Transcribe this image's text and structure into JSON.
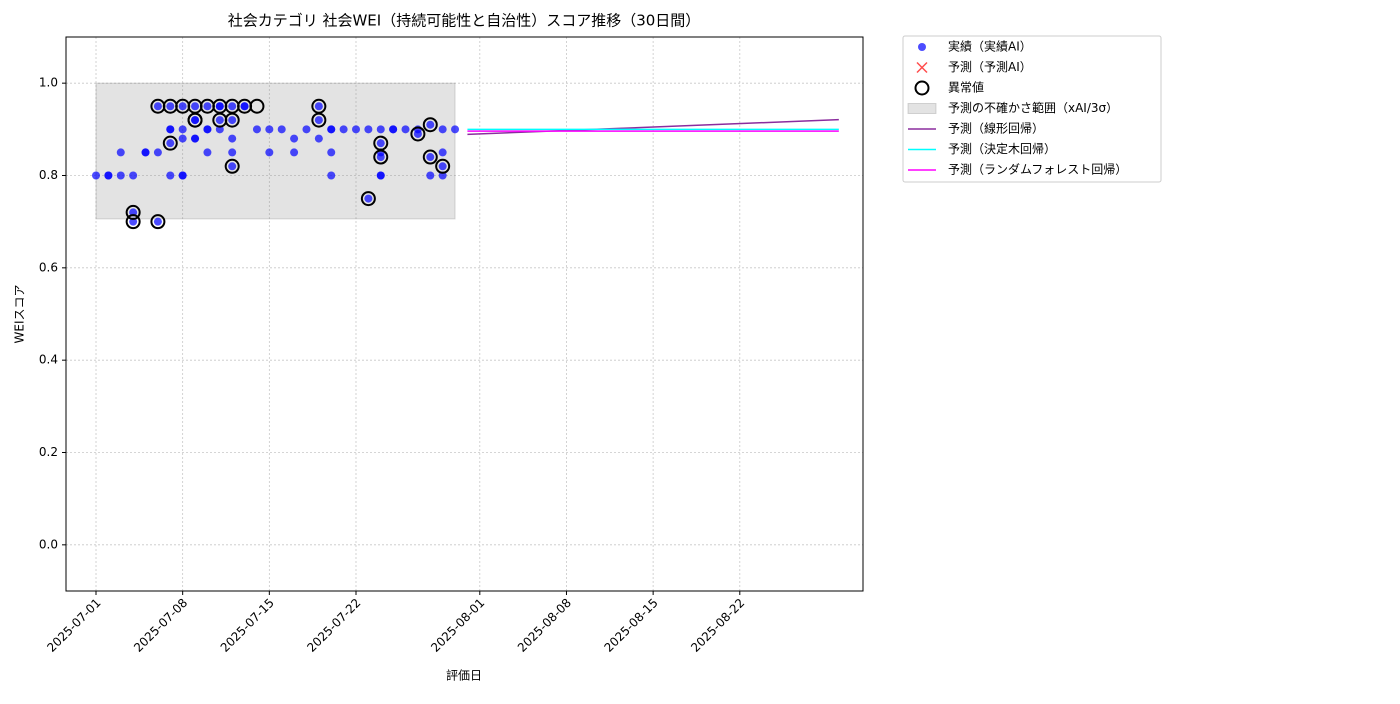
{
  "chart_data": {
    "type": "scatter",
    "title": "社会カテゴリ 社会WEI（持続可能性と自治性）スコア推移（30日間）",
    "x_label": "評価日",
    "y_label": "WEIスコア",
    "xlim": [
      "2025-06-28T13:50:00Z",
      "2025-08-31T22:50:00Z"
    ],
    "xticks": [
      "2025-07-01",
      "2025-07-08",
      "2025-07-15",
      "2025-07-22",
      "2025-08-01",
      "2025-08-08",
      "2025-08-15",
      "2025-08-22"
    ],
    "ylim": [
      -0.1,
      1.1
    ],
    "yticks": [
      {
        "value": 0,
        "label": "0.0"
      },
      {
        "value": 0.2,
        "label": "0.2"
      },
      {
        "value": 0.4,
        "label": "0.4"
      },
      {
        "value": 0.6,
        "label": "0.6"
      },
      {
        "value": 0.8,
        "label": "0.8"
      },
      {
        "value": 1,
        "label": "1.0"
      }
    ],
    "grid": true,
    "legend": "outside upper right",
    "series": [
      {
        "name": "実績（実績AI）",
        "color": "#0000ff",
        "marker": "o",
        "x": [
          "2025-07-01",
          "2025-07-02",
          "2025-07-02",
          "2025-07-03",
          "2025-07-03",
          "2025-07-04",
          "2025-07-04",
          "2025-07-04",
          "2025-07-05",
          "2025-07-05",
          "2025-07-06",
          "2025-07-06",
          "2025-07-06",
          "2025-07-07",
          "2025-07-07",
          "2025-07-07",
          "2025-07-07",
          "2025-07-07",
          "2025-07-08",
          "2025-07-08",
          "2025-07-08",
          "2025-07-08",
          "2025-07-08",
          "2025-07-09",
          "2025-07-09",
          "2025-07-09",
          "2025-07-09",
          "2025-07-09",
          "2025-07-10",
          "2025-07-10",
          "2025-07-10",
          "2025-07-10",
          "2025-07-11",
          "2025-07-11",
          "2025-07-11",
          "2025-07-11",
          "2025-07-12",
          "2025-07-12",
          "2025-07-12",
          "2025-07-12",
          "2025-07-12",
          "2025-07-13",
          "2025-07-13",
          "2025-07-14",
          "2025-07-15",
          "2025-07-15",
          "2025-07-16",
          "2025-07-17",
          "2025-07-17",
          "2025-07-18",
          "2025-07-19",
          "2025-07-19",
          "2025-07-19",
          "2025-07-20",
          "2025-07-20",
          "2025-07-20",
          "2025-07-20",
          "2025-07-21",
          "2025-07-22",
          "2025-07-23",
          "2025-07-23",
          "2025-07-24",
          "2025-07-24",
          "2025-07-24",
          "2025-07-24",
          "2025-07-24",
          "2025-07-24",
          "2025-07-25",
          "2025-07-25",
          "2025-07-26",
          "2025-07-27",
          "2025-07-27",
          "2025-07-28",
          "2025-07-28",
          "2025-07-28",
          "2025-07-29",
          "2025-07-29",
          "2025-07-29",
          "2025-07-29",
          "2025-07-30"
        ],
        "values": [
          0.8,
          0.8,
          0.8,
          0.8,
          0.85,
          0.8,
          0.72,
          0.7,
          0.85,
          0.85,
          0.85,
          0.7,
          0.95,
          0.9,
          0.95,
          0.9,
          0.8,
          0.87,
          0.8,
          0.95,
          0.9,
          0.8,
          0.88,
          0.88,
          0.95,
          0.92,
          0.88,
          0.92,
          0.9,
          0.9,
          0.85,
          0.95,
          0.92,
          0.95,
          0.95,
          0.9,
          0.82,
          0.95,
          0.88,
          0.92,
          0.85,
          0.95,
          0.95,
          0.9,
          0.9,
          0.85,
          0.9,
          0.85,
          0.88,
          0.9,
          0.95,
          0.92,
          0.88,
          0.85,
          0.9,
          0.8,
          0.9,
          0.9,
          0.9,
          0.75,
          0.9,
          0.84,
          0.8,
          0.9,
          0.8,
          0.85,
          0.87,
          0.9,
          0.9,
          0.9,
          0.9,
          0.89,
          0.8,
          0.91,
          0.84,
          0.85,
          0.9,
          0.8,
          0.82,
          0.9
        ]
      },
      {
        "name": "予測（予測AI）",
        "color": "#ff0000",
        "marker": "x",
        "x": [],
        "values": []
      },
      {
        "name": "異常値",
        "color": "#000000",
        "marker": "ring",
        "x": [
          "2025-07-04",
          "2025-07-04",
          "2025-07-06",
          "2025-07-06",
          "2025-07-07",
          "2025-07-07",
          "2025-07-08",
          "2025-07-09",
          "2025-07-09",
          "2025-07-09",
          "2025-07-10",
          "2025-07-11",
          "2025-07-11",
          "2025-07-12",
          "2025-07-12",
          "2025-07-12",
          "2025-07-13",
          "2025-07-14",
          "2025-07-19",
          "2025-07-19",
          "2025-07-23",
          "2025-07-24",
          "2025-07-24",
          "2025-07-27",
          "2025-07-28",
          "2025-07-28",
          "2025-07-29"
        ],
        "values": [
          0.72,
          0.7,
          0.95,
          0.7,
          0.95,
          0.87,
          0.95,
          0.95,
          0.92,
          0.92,
          0.95,
          0.92,
          0.95,
          0.82,
          0.95,
          0.92,
          0.95,
          0.95,
          0.95,
          0.92,
          0.75,
          0.84,
          0.87,
          0.89,
          0.91,
          0.84,
          0.82
        ]
      }
    ],
    "band": {
      "name": "予測の不確かさ範囲（xAI/3σ）",
      "color": "#808080",
      "x": [
        "2025-07-01",
        "2025-07-30"
      ],
      "lower": [
        0.706,
        0.706
      ],
      "upper": [
        1.0,
        1.0
      ]
    },
    "lines": [
      {
        "name": "予測（線形回帰）",
        "color": "#8b2d9e",
        "x": [
          "2025-07-31",
          "2025-08-30"
        ],
        "values": [
          0.889,
          0.921
        ]
      },
      {
        "name": "予測（決定木回帰）",
        "color": "#00ffff",
        "x": [
          "2025-07-31",
          "2025-08-30"
        ],
        "values": [
          0.9,
          0.9
        ]
      },
      {
        "name": "予測（ランダムフォレスト回帰）",
        "color": "#ff00ff",
        "x": [
          "2025-07-31",
          "2025-08-30"
        ],
        "values": [
          0.896,
          0.896
        ]
      }
    ]
  }
}
